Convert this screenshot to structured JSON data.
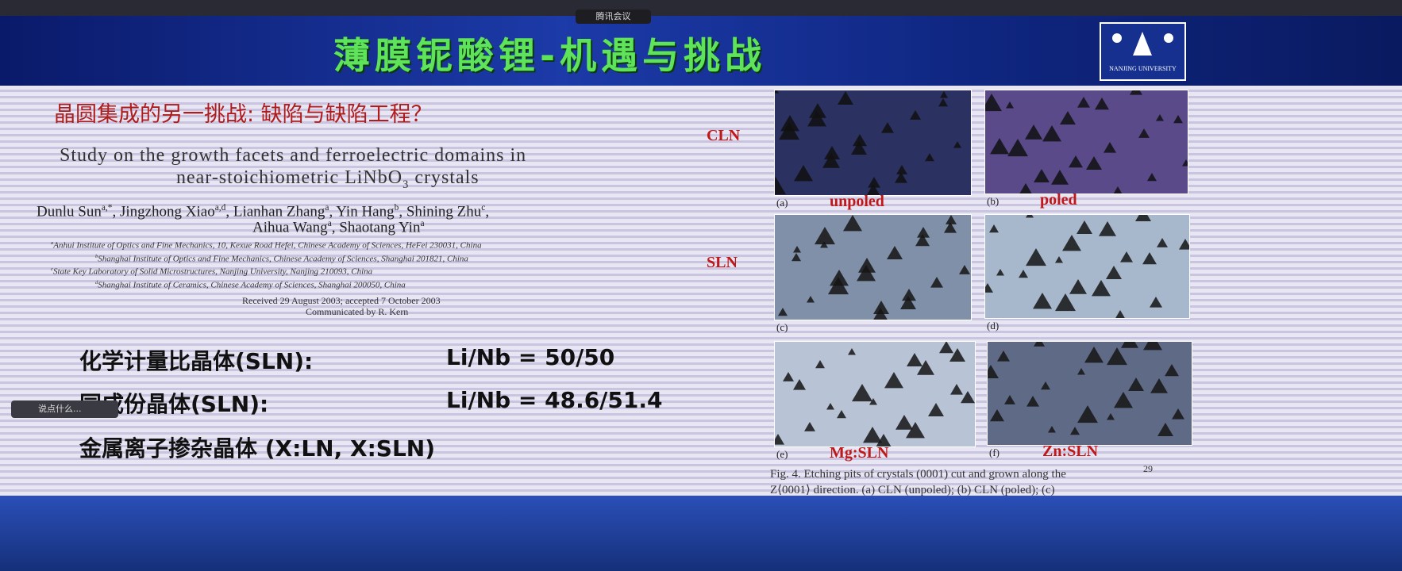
{
  "meeting_app": "腾讯会议",
  "header": {
    "title": "薄膜铌酸锂-机遇与挑战",
    "logo_text": "NANJING UNIVERSITY"
  },
  "subtitle": "晶圆集成的另一挑战: 缺陷与缺陷工程？",
  "paper": {
    "title_line1": "Study on the growth facets and ferroelectric domains in",
    "title_line2": [
      "near-stoichiometric LiNbO",
      "3",
      " crystals"
    ],
    "authors": [
      [
        {
          "name": "Dunlu Sun",
          "sup": "a,*",
          "sep": ","
        },
        {
          "name": "Jingzhong Xiao",
          "sup": "a,d",
          "sep": ","
        },
        {
          "name": "Lianhan Zhang",
          "sup": "a",
          "sep": ","
        },
        {
          "name": "Yin Hang",
          "sup": "b",
          "sep": ","
        },
        {
          "name": "Shining Zhu",
          "sup": "c",
          "sep": ","
        }
      ],
      [
        {
          "name": "Aihua Wang",
          "sup": "a",
          "sep": ","
        },
        {
          "name": "Shaotang Yin",
          "sup": "a"
        }
      ]
    ],
    "affiliations": [
      {
        "sup": "a",
        "text": "Anhui Institute of Optics and Fine Mechanics, 10, Kexue Road Hefei, Chinese Academy of Sciences, HeFei 230031, China"
      },
      {
        "sup": "b",
        "text": "Shanghai Institute of Optics and Fine Mechanics, Chinese Academy of Sciences, Shanghai 201821, China"
      },
      {
        "sup": "c",
        "text": "State Key Laboratory of Solid Microstructures, Nanjing University, Nanjing 210093, China"
      },
      {
        "sup": "d",
        "text": "Shanghai Institute of Ceramics, Chinese Academy of Sciences, Shanghai 200050, China"
      }
    ],
    "received": "Received 29 August 2003; accepted 7 October 2003",
    "communicated": "Communicated by R. Kern"
  },
  "formulas": [
    {
      "label": "化学计量比晶体(SLN):",
      "value": "Li/Nb = 50/50"
    },
    {
      "label": "同成份晶体(SLN):",
      "value": "Li/Nb = 48.6/51.4"
    },
    {
      "label": "金属离子掺杂晶体 (X:LN, X:SLN)"
    }
  ],
  "row_labels": [
    "CLN",
    "SLN"
  ],
  "panels": [
    {
      "letter": "(a)",
      "caption": "unpoled"
    },
    {
      "letter": "(b)",
      "caption": "poled"
    },
    {
      "letter": "(c)"
    },
    {
      "letter": "(d)"
    },
    {
      "letter": "(e)",
      "caption": "Mg:SLN"
    },
    {
      "letter": "(f)",
      "caption": "Zn:SLN"
    }
  ],
  "figure_caption": [
    "Fig. 4.  Etching pits of crystals (0001) cut and grown along the",
    "Z⟨0001⟩ direction. (a) CLN (unpoled); (b) CLN (poled); (c)"
  ],
  "page_number": "29",
  "chat_placeholder": "说点什么..."
}
